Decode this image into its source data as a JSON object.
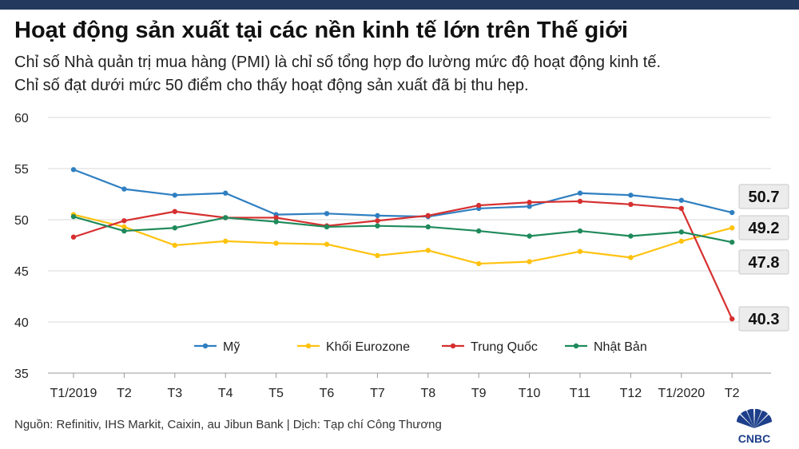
{
  "header": {
    "title": "Hoạt động sản xuất tại các nền kinh tế lớn trên Thế giới",
    "subtitle_line1": "Chỉ số Nhà quản trị mua hàng (PMI) là chỉ số tổng hợp đo lường mức độ hoạt động kinh tế.",
    "subtitle_line2": "Chỉ số đạt dưới mức 50 điểm cho thấy hoạt động sản xuất đã bị thu hẹp."
  },
  "footer": {
    "source": "Nguồn: Refinitiv, IHS Markit, Caixin, au Jibun Bank | Dịch: Tạp chí Công Thương",
    "logo_text": "CNBC"
  },
  "colors": {
    "topbar": "#233a5e",
    "grid": "#d9d9d9",
    "callout_bg": "#ececec",
    "callout_border": "#c8c8c8"
  },
  "chart_data": {
    "type": "line",
    "title": "Hoạt động sản xuất tại các nền kinh tế lớn trên Thế giới",
    "xlabel": "",
    "ylabel": "",
    "categories": [
      "T1/2019",
      "T2",
      "T3",
      "T4",
      "T5",
      "T6",
      "T7",
      "T8",
      "T9",
      "T10",
      "T11",
      "T12",
      "T1/2020",
      "T2"
    ],
    "ylim": [
      35,
      60
    ],
    "yticks": [
      35,
      40,
      45,
      50,
      55,
      60
    ],
    "grid": true,
    "legend_position": "bottom-center",
    "series": [
      {
        "name": "Mỹ",
        "color": "#2f7fc1",
        "values": [
          54.9,
          53.0,
          52.4,
          52.6,
          50.5,
          50.6,
          50.4,
          50.3,
          51.1,
          51.3,
          52.6,
          52.4,
          51.9,
          50.7
        ],
        "end_label": "50.7"
      },
      {
        "name": "Khối Eurozone",
        "color": "#ffc20e",
        "values": [
          50.5,
          49.3,
          47.5,
          47.9,
          47.7,
          47.6,
          46.5,
          47.0,
          45.7,
          45.9,
          46.9,
          46.3,
          47.9,
          49.2
        ],
        "end_label": "49.2"
      },
      {
        "name": "Trung Quốc",
        "color": "#d62f2f",
        "values": [
          48.3,
          49.9,
          50.8,
          50.2,
          50.2,
          49.4,
          49.9,
          50.4,
          51.4,
          51.7,
          51.8,
          51.5,
          51.1,
          40.3
        ],
        "end_label": "40.3"
      },
      {
        "name": "Nhật Bản",
        "color": "#1f8a5b",
        "values": [
          50.3,
          48.9,
          49.2,
          50.2,
          49.8,
          49.3,
          49.4,
          49.3,
          48.9,
          48.4,
          48.9,
          48.4,
          48.8,
          47.8
        ],
        "end_label": "47.8"
      }
    ]
  }
}
